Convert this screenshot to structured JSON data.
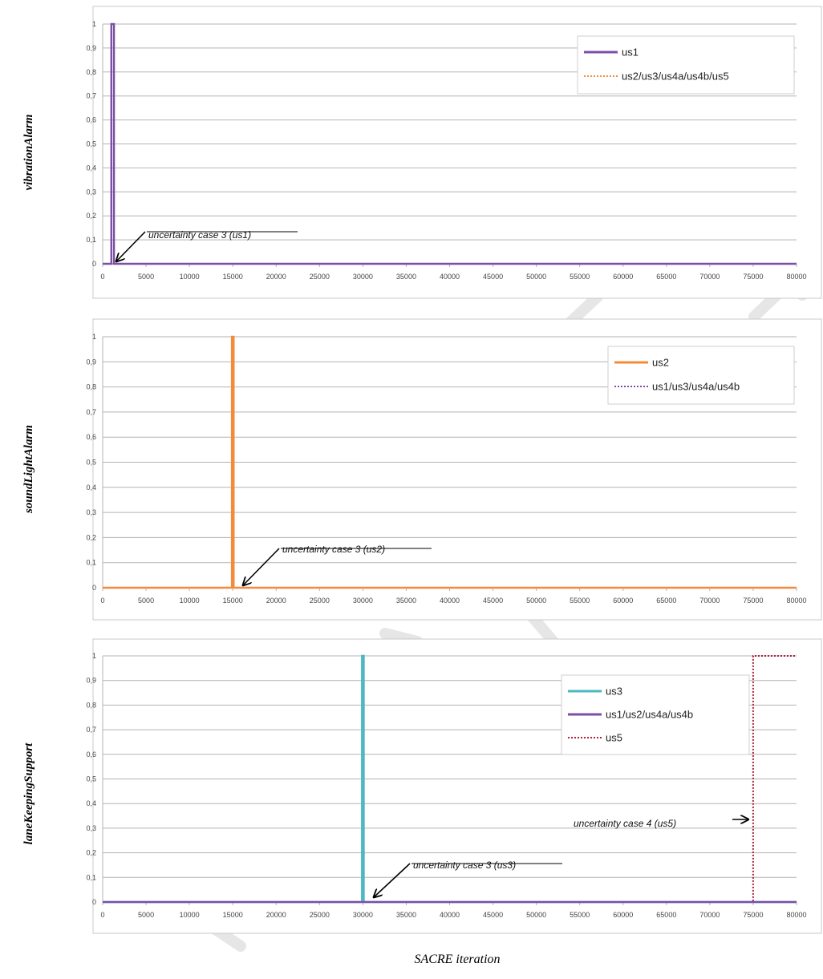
{
  "xlabel": "SACRE iteration",
  "colors": {
    "us1": "#7b4fa6",
    "us2": "#f58b3a",
    "us3": "#4bb8c2",
    "us5": "#b0203a",
    "gray": "#b3b3b3",
    "watermark": "#e6e6e6"
  },
  "chart_data": [
    {
      "type": "line",
      "ylabel": "vibrationAlarm",
      "xlim": [
        0,
        80000
      ],
      "ylim": [
        0,
        1
      ],
      "xticks": [
        "0",
        "5000",
        "10000",
        "15000",
        "20000",
        "25000",
        "30000",
        "35000",
        "40000",
        "45000",
        "50000",
        "55000",
        "60000",
        "65000",
        "70000",
        "75000",
        "80000"
      ],
      "yticks": [
        "0",
        "0,1",
        "0,2",
        "0,3",
        "0,4",
        "0,5",
        "0,6",
        "0,7",
        "0,8",
        "0,9",
        "1"
      ],
      "grid": true,
      "legend_position": "top-right",
      "series": [
        {
          "name": "us1",
          "color": "#7b4fa6",
          "style": "solid",
          "x": [
            0,
            1000,
            1000,
            1300,
            1300,
            80000
          ],
          "y": [
            0,
            0,
            1,
            1,
            0,
            0
          ]
        },
        {
          "name": "us2/us3/us4a/us4b/us5",
          "color": "#f58b3a",
          "style": "dotted",
          "x": [
            0,
            80000
          ],
          "y": [
            0,
            0
          ]
        }
      ],
      "annotations": [
        {
          "text": "uncertainty case 3 (us1)",
          "x": 1100,
          "y": 0
        }
      ]
    },
    {
      "type": "line",
      "ylabel": "soundLightAlarm",
      "xlim": [
        0,
        80000
      ],
      "ylim": [
        0,
        1
      ],
      "xticks": [
        "0",
        "5000",
        "10000",
        "15000",
        "20000",
        "25000",
        "30000",
        "35000",
        "40000",
        "45000",
        "50000",
        "55000",
        "60000",
        "65000",
        "70000",
        "75000",
        "80000"
      ],
      "yticks": [
        "0",
        "0,1",
        "0,2",
        "0,3",
        "0,4",
        "0,5",
        "0,6",
        "0,7",
        "0,8",
        "0,9",
        "1"
      ],
      "grid": true,
      "legend_position": "top-right",
      "series": [
        {
          "name": "us2",
          "color": "#f58b3a",
          "style": "solid",
          "x": [
            0,
            14900,
            14900,
            15100,
            15100,
            80000
          ],
          "y": [
            0,
            0,
            1,
            1,
            0,
            0
          ]
        },
        {
          "name": "us1/us3/us4a/us4b",
          "color": "#7b4fa6",
          "style": "dotted",
          "x": [
            0,
            80000
          ],
          "y": [
            0,
            0
          ]
        }
      ],
      "annotations": [
        {
          "text": "uncertainty case 3 (us2)",
          "x": 15000,
          "y": 0
        }
      ]
    },
    {
      "type": "line",
      "ylabel": "laneKeepingSupport",
      "xlim": [
        0,
        80000
      ],
      "ylim": [
        0,
        1
      ],
      "xticks": [
        "0",
        "5000",
        "10000",
        "15000",
        "20000",
        "25000",
        "30000",
        "35000",
        "40000",
        "45000",
        "50000",
        "55000",
        "60000",
        "65000",
        "70000",
        "75000",
        "80000"
      ],
      "yticks": [
        "0",
        "0,1",
        "0,2",
        "0,3",
        "0,4",
        "0,5",
        "0,6",
        "0,7",
        "0,8",
        "0,9",
        "1"
      ],
      "grid": true,
      "legend_position": "top-right",
      "series": [
        {
          "name": "us3",
          "color": "#4bb8c2",
          "style": "solid",
          "x": [
            0,
            29900,
            29900,
            30100,
            30100,
            80000
          ],
          "y": [
            0,
            0,
            1,
            1,
            0,
            0
          ]
        },
        {
          "name": "us1/us2/us4a/us4b",
          "color": "#7b4fa6",
          "style": "solid",
          "x": [
            0,
            80000
          ],
          "y": [
            0,
            0
          ]
        },
        {
          "name": "us5",
          "color": "#b0203a",
          "style": "dotted",
          "x": [
            0,
            75000,
            75000,
            80000
          ],
          "y": [
            0,
            0,
            1,
            1
          ]
        }
      ],
      "annotations": [
        {
          "text": "uncertainty case 3 (us3)",
          "x": 30000,
          "y": 0
        },
        {
          "text": "uncertainty case 4 (us5)",
          "x": 75000,
          "y": 0.35
        }
      ]
    }
  ]
}
